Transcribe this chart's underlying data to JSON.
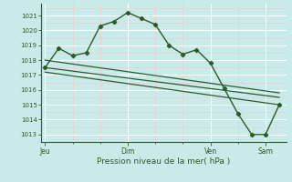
{
  "background_color": "#c8eae8",
  "grid_color_major": "#ffffff",
  "grid_color_minor": "#e0f0f0",
  "line_color": "#2d5a2d",
  "marker_color": "#2d5a2d",
  "ylabel_ticks": [
    1013,
    1014,
    1015,
    1016,
    1017,
    1018,
    1019,
    1020,
    1021
  ],
  "ylim": [
    1012.5,
    1021.8
  ],
  "xlabel": "Pression niveau de la mer( hPa )",
  "day_labels": [
    "Jeu",
    "Dim",
    "Ven",
    "Sam"
  ],
  "day_positions": [
    0,
    6,
    12,
    16
  ],
  "xlim": [
    -0.3,
    17.5
  ],
  "series1_x": [
    0,
    1,
    2,
    3,
    4,
    5,
    6,
    7,
    8,
    9,
    10,
    11,
    12,
    13,
    14,
    15,
    16,
    17
  ],
  "series1_y": [
    1017.5,
    1018.8,
    1018.3,
    1018.5,
    1020.3,
    1020.6,
    1021.2,
    1020.8,
    1020.4,
    1019.0,
    1018.4,
    1018.7,
    1017.8,
    1016.1,
    1014.4,
    1013.0,
    1013.0,
    1015.0
  ],
  "series2_x": [
    0,
    17
  ],
  "series2_y": [
    1018.0,
    1015.8
  ],
  "series3_x": [
    0,
    17
  ],
  "series3_y": [
    1017.5,
    1015.5
  ],
  "series4_x": [
    0,
    17
  ],
  "series4_y": [
    1017.2,
    1015.0
  ]
}
